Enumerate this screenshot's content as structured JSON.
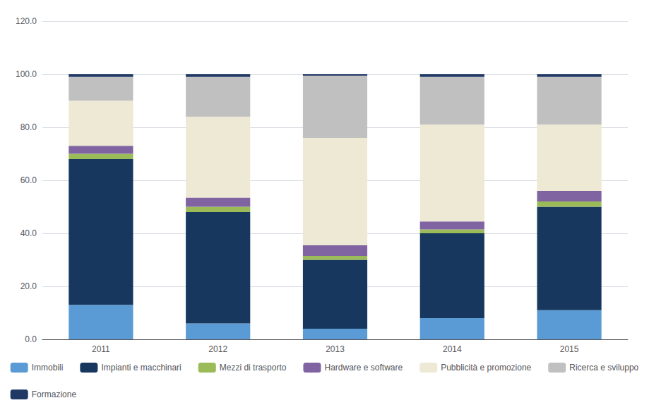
{
  "chart_data": {
    "type": "bar",
    "stacked": true,
    "categories": [
      "2011",
      "2012",
      "2013",
      "2014",
      "2015"
    ],
    "series": [
      {
        "name": "Immobili",
        "color": "#5B9BD5",
        "values": [
          13.0,
          6.0,
          4.0,
          8.0,
          11.0
        ]
      },
      {
        "name": "Impianti e macchinari",
        "color": "#17375E",
        "values": [
          55.0,
          42.0,
          26.0,
          32.0,
          39.0
        ]
      },
      {
        "name": "Mezzi di trasporto",
        "color": "#9BBB59",
        "values": [
          2.0,
          2.0,
          1.5,
          1.5,
          2.0
        ]
      },
      {
        "name": "Hardware e software",
        "color": "#8064A2",
        "values": [
          3.0,
          3.5,
          4.0,
          3.0,
          4.0
        ]
      },
      {
        "name": "Pubblicità e promozione",
        "color": "#EEE9D5",
        "values": [
          17.0,
          30.5,
          40.5,
          36.5,
          25.0
        ]
      },
      {
        "name": "Ricerca e sviluppo",
        "color": "#C0C0C0",
        "values": [
          9.0,
          15.0,
          23.5,
          18.0,
          18.0
        ]
      },
      {
        "name": "Formazione",
        "color": "#1F3864",
        "values": [
          1.0,
          1.0,
          0.5,
          1.0,
          1.0
        ]
      }
    ],
    "ylim": [
      0,
      120
    ],
    "yticks": [
      {
        "value": 0,
        "label": "0.0"
      },
      {
        "value": 20,
        "label": "20.0"
      },
      {
        "value": 40,
        "label": "40.0"
      },
      {
        "value": 60,
        "label": "60.0"
      },
      {
        "value": 80,
        "label": "80.0"
      },
      {
        "value": 100,
        "label": "100.0"
      },
      {
        "value": 120,
        "label": "120.0"
      }
    ],
    "grid": true,
    "legend": "bottom"
  }
}
